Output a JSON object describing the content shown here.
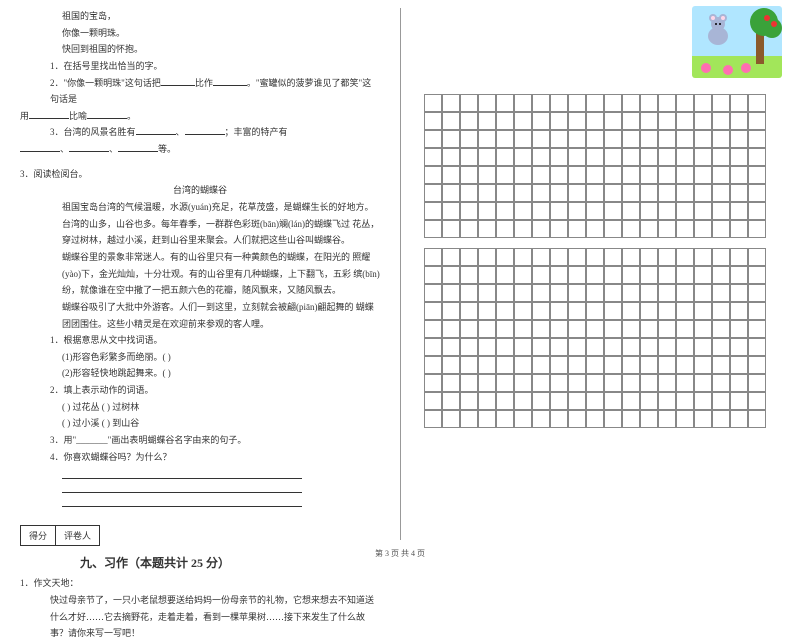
{
  "left": {
    "poem_l1": "祖国的宝岛，",
    "poem_l2": "你像一颗明珠。",
    "poem_l3": "快回到祖国的怀抱。",
    "q1": "1．在括号里找出恰当的字。",
    "q2a": "2．\"你像一颗明珠\"这句话把",
    "q2b": "比作",
    "q2c": "。\"蜜罐似的菠萝谁见了都笑\"这句话是",
    "q2d": "用",
    "q2e": "比喻",
    "q2f": "。",
    "q3a": "3．台湾的风景名胜有",
    "q3b": "、",
    "q3c": "；丰富的特产有",
    "q3d": "、",
    "q3e": "等。",
    "r_head": "3．阅读检阅台。",
    "title": "台湾的蝴蝶谷",
    "p1": "祖国宝岛台湾的气候温暖，水源(yuán)充足，花草茂盛，是蝴蝶生长的好地方。",
    "p2": "台湾的山多，山谷也多。每年春季，一群群色彩斑(bān)斓(lán)的蝴蝶飞过  花丛，穿过树林，越过小溪，赶到山谷里来聚会。人们就把这些山谷叫蝴蝶谷。",
    "p3": "蝴蝶谷里的景象非常迷人。有的山谷里只有一种黄颜色的蝴蝶，在阳光的    照耀(yào)下，金光灿灿，十分壮观。有的山谷里有几种蝴蝶，上下翻飞，五彩  缤(bīn)纷，就像谁在空中撒了一把五颜六色的花瓣，随风飘来，又随风飘去。",
    "p4": "蝴蝶谷吸引了大批中外游客。人们一到这里，立刻就会被翩(piān)翩起舞的  蝴蝶团团围住。这些小精灵是在欢迎前来参观的客人哩。",
    "rq1": "1．根据意思从文中找词语。",
    "rq1a": "(1)形容色彩繁多而绝丽。(          )",
    "rq1b": "(2)形容轻快地跳起舞来。(          )",
    "rq2": "2．填上表示动作的词语。",
    "rq2a": "(        ) 过花丛          (        ) 过树林",
    "rq2b": "(        ) 过小溪          (        ) 到山谷",
    "rq3": "3．用\"_______\"画出表明蝴蝶谷名字由来的句子。",
    "rq4": "4．你喜欢蝴蝶谷吗？为什么？",
    "score1": "得分",
    "score2": "评卷人",
    "sec_title": "九、习作（本题共计 25 分）",
    "w_head": "1．作文天地：",
    "w_body": "快过母亲节了，一只小老鼠想要送给妈妈一份母亲节的礼物，它想来想去不知道送什么才好……它去摘野花，走着走着，看到一棵苹果树……接下来发生了什么故事？请你来写一写吧！"
  },
  "footer": "第 3 页  共 4 页",
  "style": {
    "grid_cols": 19,
    "grid_rows_a": 8,
    "grid_rows_b": 10,
    "grid_gap": "10px",
    "illus": {
      "sky": "#b0e6ff",
      "grass": "#a2e65a",
      "trunk": "#8b5a2b",
      "leaves": "#3aa23a",
      "mouse": "#a8b5d6",
      "flower": "#ff6fb0"
    }
  }
}
